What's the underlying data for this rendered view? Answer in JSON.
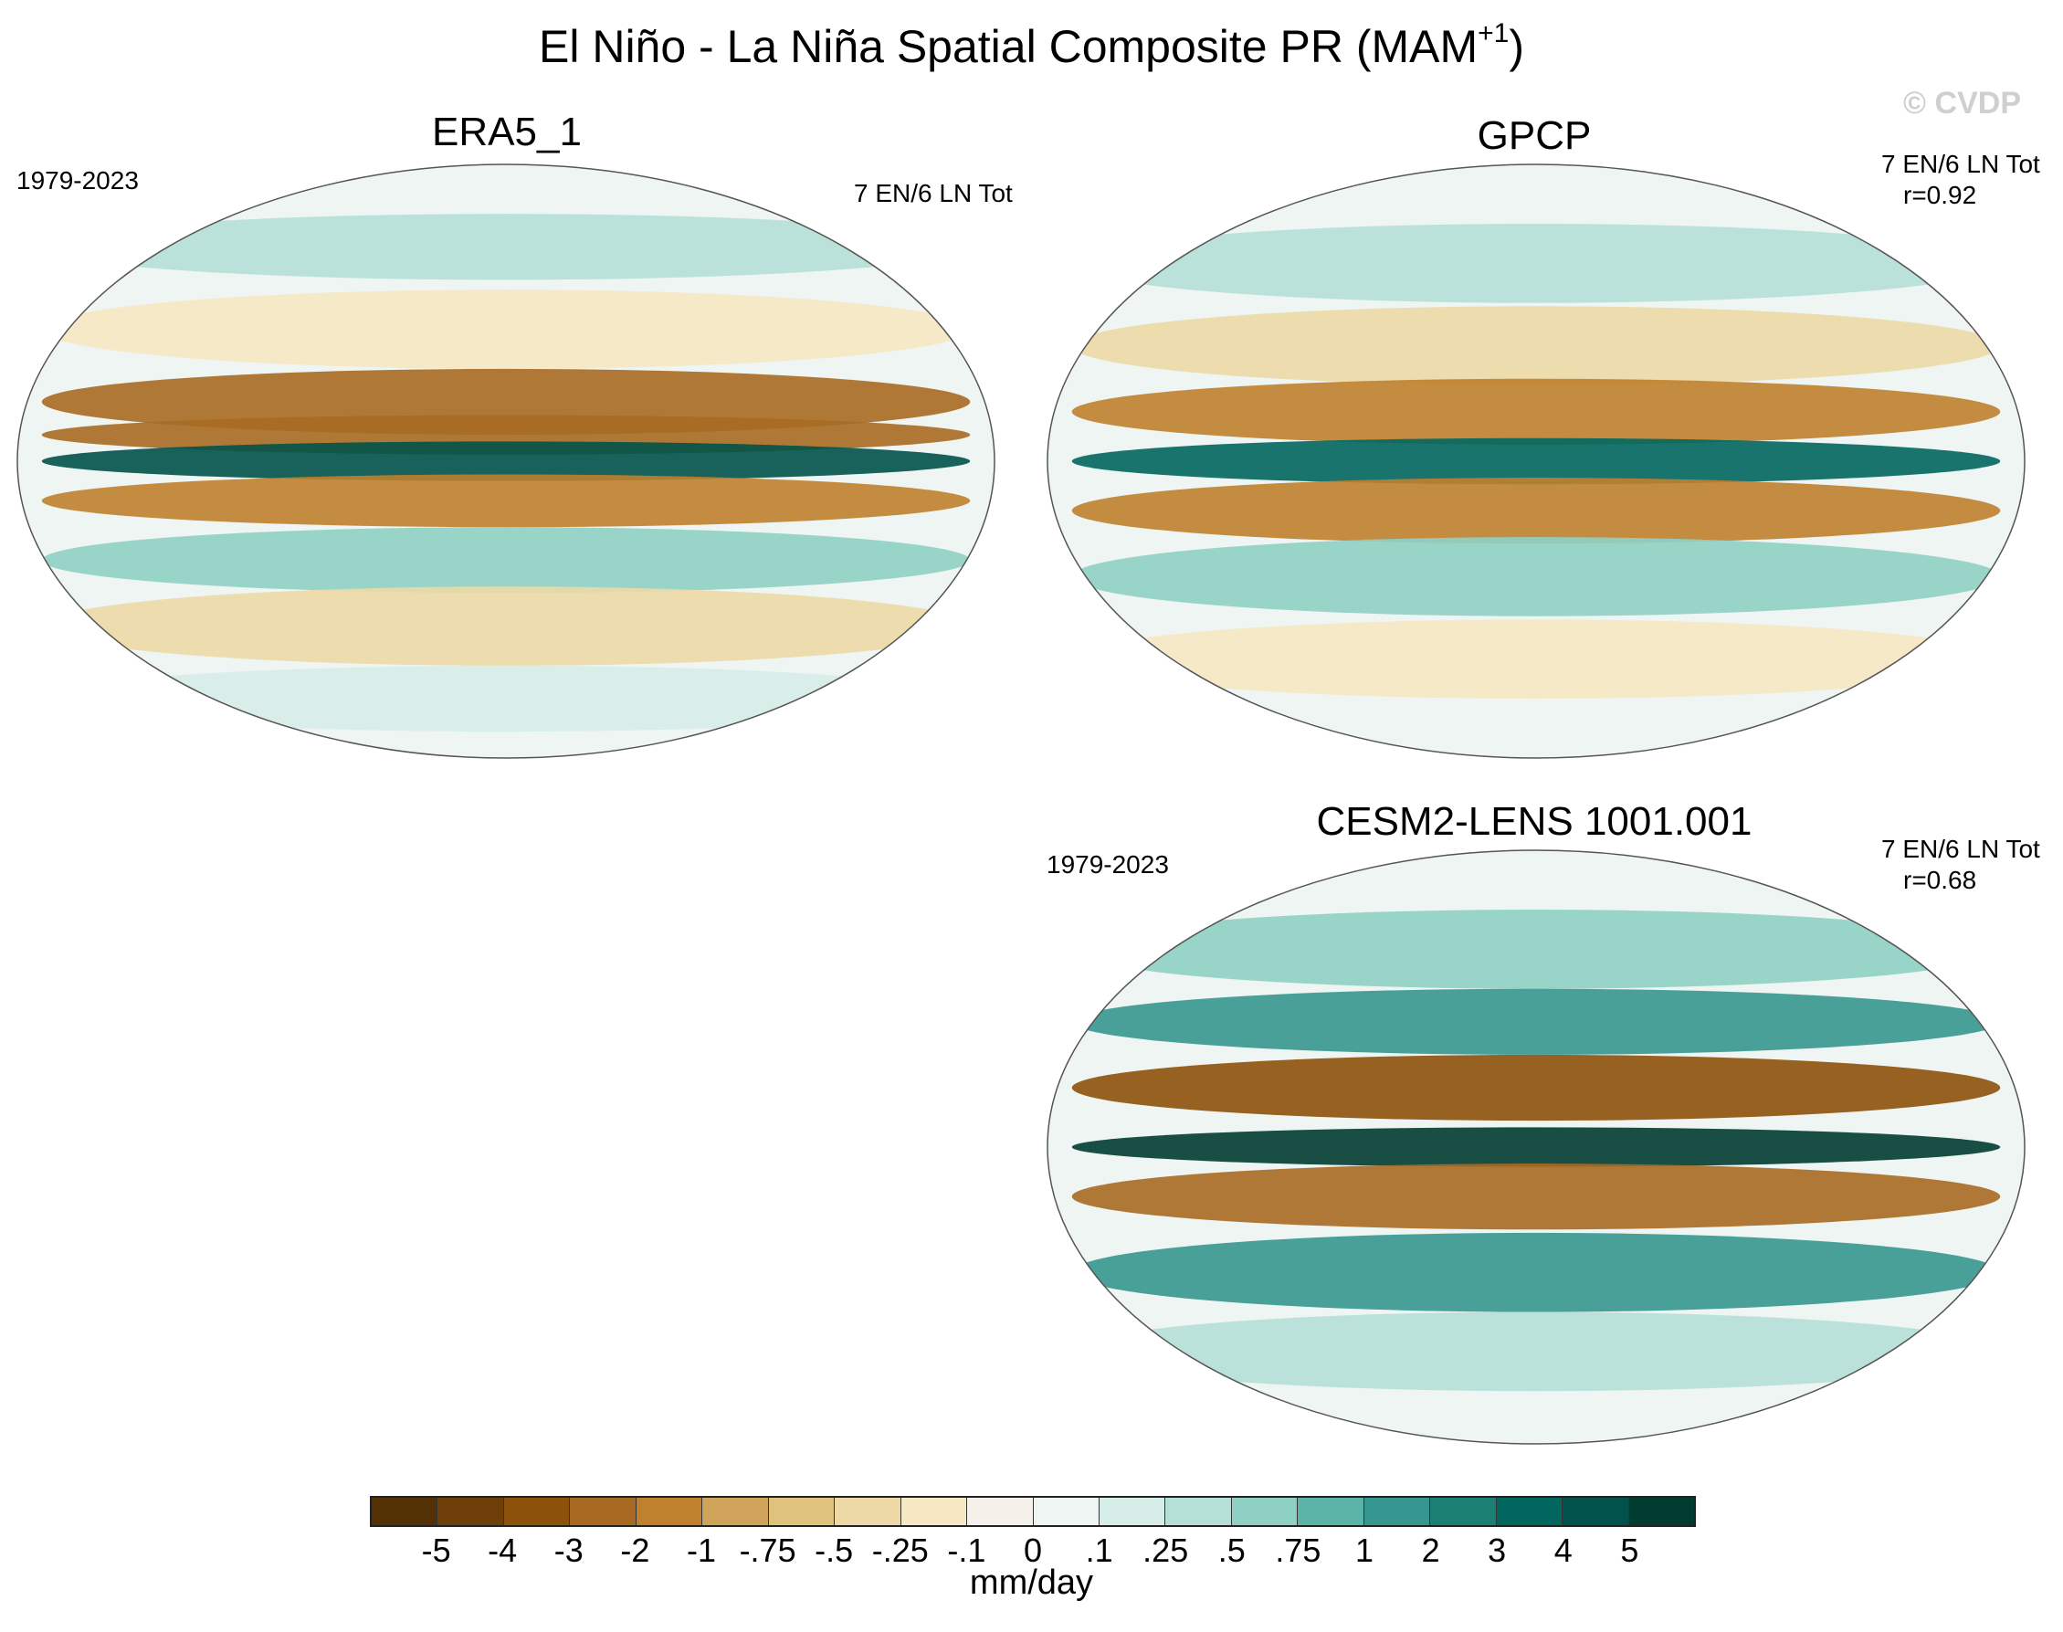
{
  "title": {
    "main": "El Niño - La Niña Spatial Composite PR (MAM",
    "sup": "+1",
    "close": ")"
  },
  "watermark": "© CVDP",
  "panels": [
    {
      "id": "era5",
      "title": "ERA5_1",
      "period": "1979-2023",
      "counts": "7 EN/6 LN Tot",
      "corr": "",
      "bands": [
        {
          "lat": 65,
          "w": 10,
          "v": 0.3
        },
        {
          "lat": 40,
          "w": 12,
          "v": -0.2
        },
        {
          "lat": 18,
          "w": 10,
          "v": -2.5
        },
        {
          "lat": 8,
          "w": 6,
          "v": -3
        },
        {
          "lat": 0,
          "w": 6,
          "v": 4
        },
        {
          "lat": -12,
          "w": 8,
          "v": -2
        },
        {
          "lat": -30,
          "w": 10,
          "v": 0.6
        },
        {
          "lat": -50,
          "w": 12,
          "v": -0.3
        },
        {
          "lat": -72,
          "w": 10,
          "v": 0.2
        }
      ]
    },
    {
      "id": "gpcp",
      "title": "GPCP",
      "period": "",
      "counts": "7 EN/6 LN Tot",
      "corr": "r=0.92",
      "bands": [
        {
          "lat": 60,
          "w": 12,
          "v": 0.4
        },
        {
          "lat": 35,
          "w": 12,
          "v": -0.4
        },
        {
          "lat": 15,
          "w": 10,
          "v": -2
        },
        {
          "lat": 0,
          "w": 7,
          "v": 3.5
        },
        {
          "lat": -15,
          "w": 10,
          "v": -1.5
        },
        {
          "lat": -35,
          "w": 12,
          "v": 0.5
        },
        {
          "lat": -60,
          "w": 12,
          "v": -0.2
        }
      ]
    },
    {
      "id": "cesm2",
      "title": "CESM2-LENS 1001.001",
      "period": "1979-2023",
      "counts": "7 EN/6 LN Tot",
      "corr": "r=0.68",
      "bands": [
        {
          "lat": 60,
          "w": 12,
          "v": 0.5
        },
        {
          "lat": 38,
          "w": 10,
          "v": 1
        },
        {
          "lat": 18,
          "w": 10,
          "v": -3.5
        },
        {
          "lat": 0,
          "w": 6,
          "v": 5
        },
        {
          "lat": -15,
          "w": 10,
          "v": -2.5
        },
        {
          "lat": -38,
          "w": 12,
          "v": 1
        },
        {
          "lat": -62,
          "w": 12,
          "v": 0.3
        }
      ]
    }
  ],
  "colorbar": {
    "units": "mm/day",
    "levels": [
      "-5",
      "-4",
      "-3",
      "-2",
      "-1",
      "-.75",
      "-.5",
      "-.25",
      "-.1",
      "0",
      ".1",
      ".25",
      ".5",
      ".75",
      "1",
      "2",
      "3",
      "4",
      "5"
    ],
    "colors": [
      "#543005",
      "#6f3f0a",
      "#8c510a",
      "#a86a22",
      "#bf812d",
      "#d0a35b",
      "#dfc27d",
      "#ecd9a6",
      "#f6e8c3",
      "#f5f1ea",
      "#eef5f3",
      "#d6ede8",
      "#b4e0d8",
      "#8fd0c4",
      "#5cb3a8",
      "#35978f",
      "#1b7f74",
      "#01665e",
      "#01524a",
      "#003c30"
    ]
  }
}
